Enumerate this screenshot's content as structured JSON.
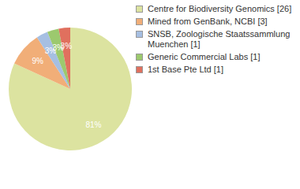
{
  "chart_data": {
    "type": "pie",
    "categories": [
      "Centre for Biodiversity Genomics [26]",
      "Mined from GenBank, NCBI [3]",
      "SNSB, Zoologische Staatssammlung Muenchen [1]",
      "Generic Commercial Labs [1]",
      "1st Base Pte Ltd [1]"
    ],
    "values": [
      81,
      9,
      3,
      3,
      3
    ],
    "value_labels": [
      "81%",
      "9%",
      "3%",
      "3%",
      "3%"
    ],
    "data_labels": true,
    "colors": [
      "#dce3a0",
      "#f1ae78",
      "#a6bfe2",
      "#9cc96e",
      "#e0705e"
    ],
    "legend": "right"
  }
}
